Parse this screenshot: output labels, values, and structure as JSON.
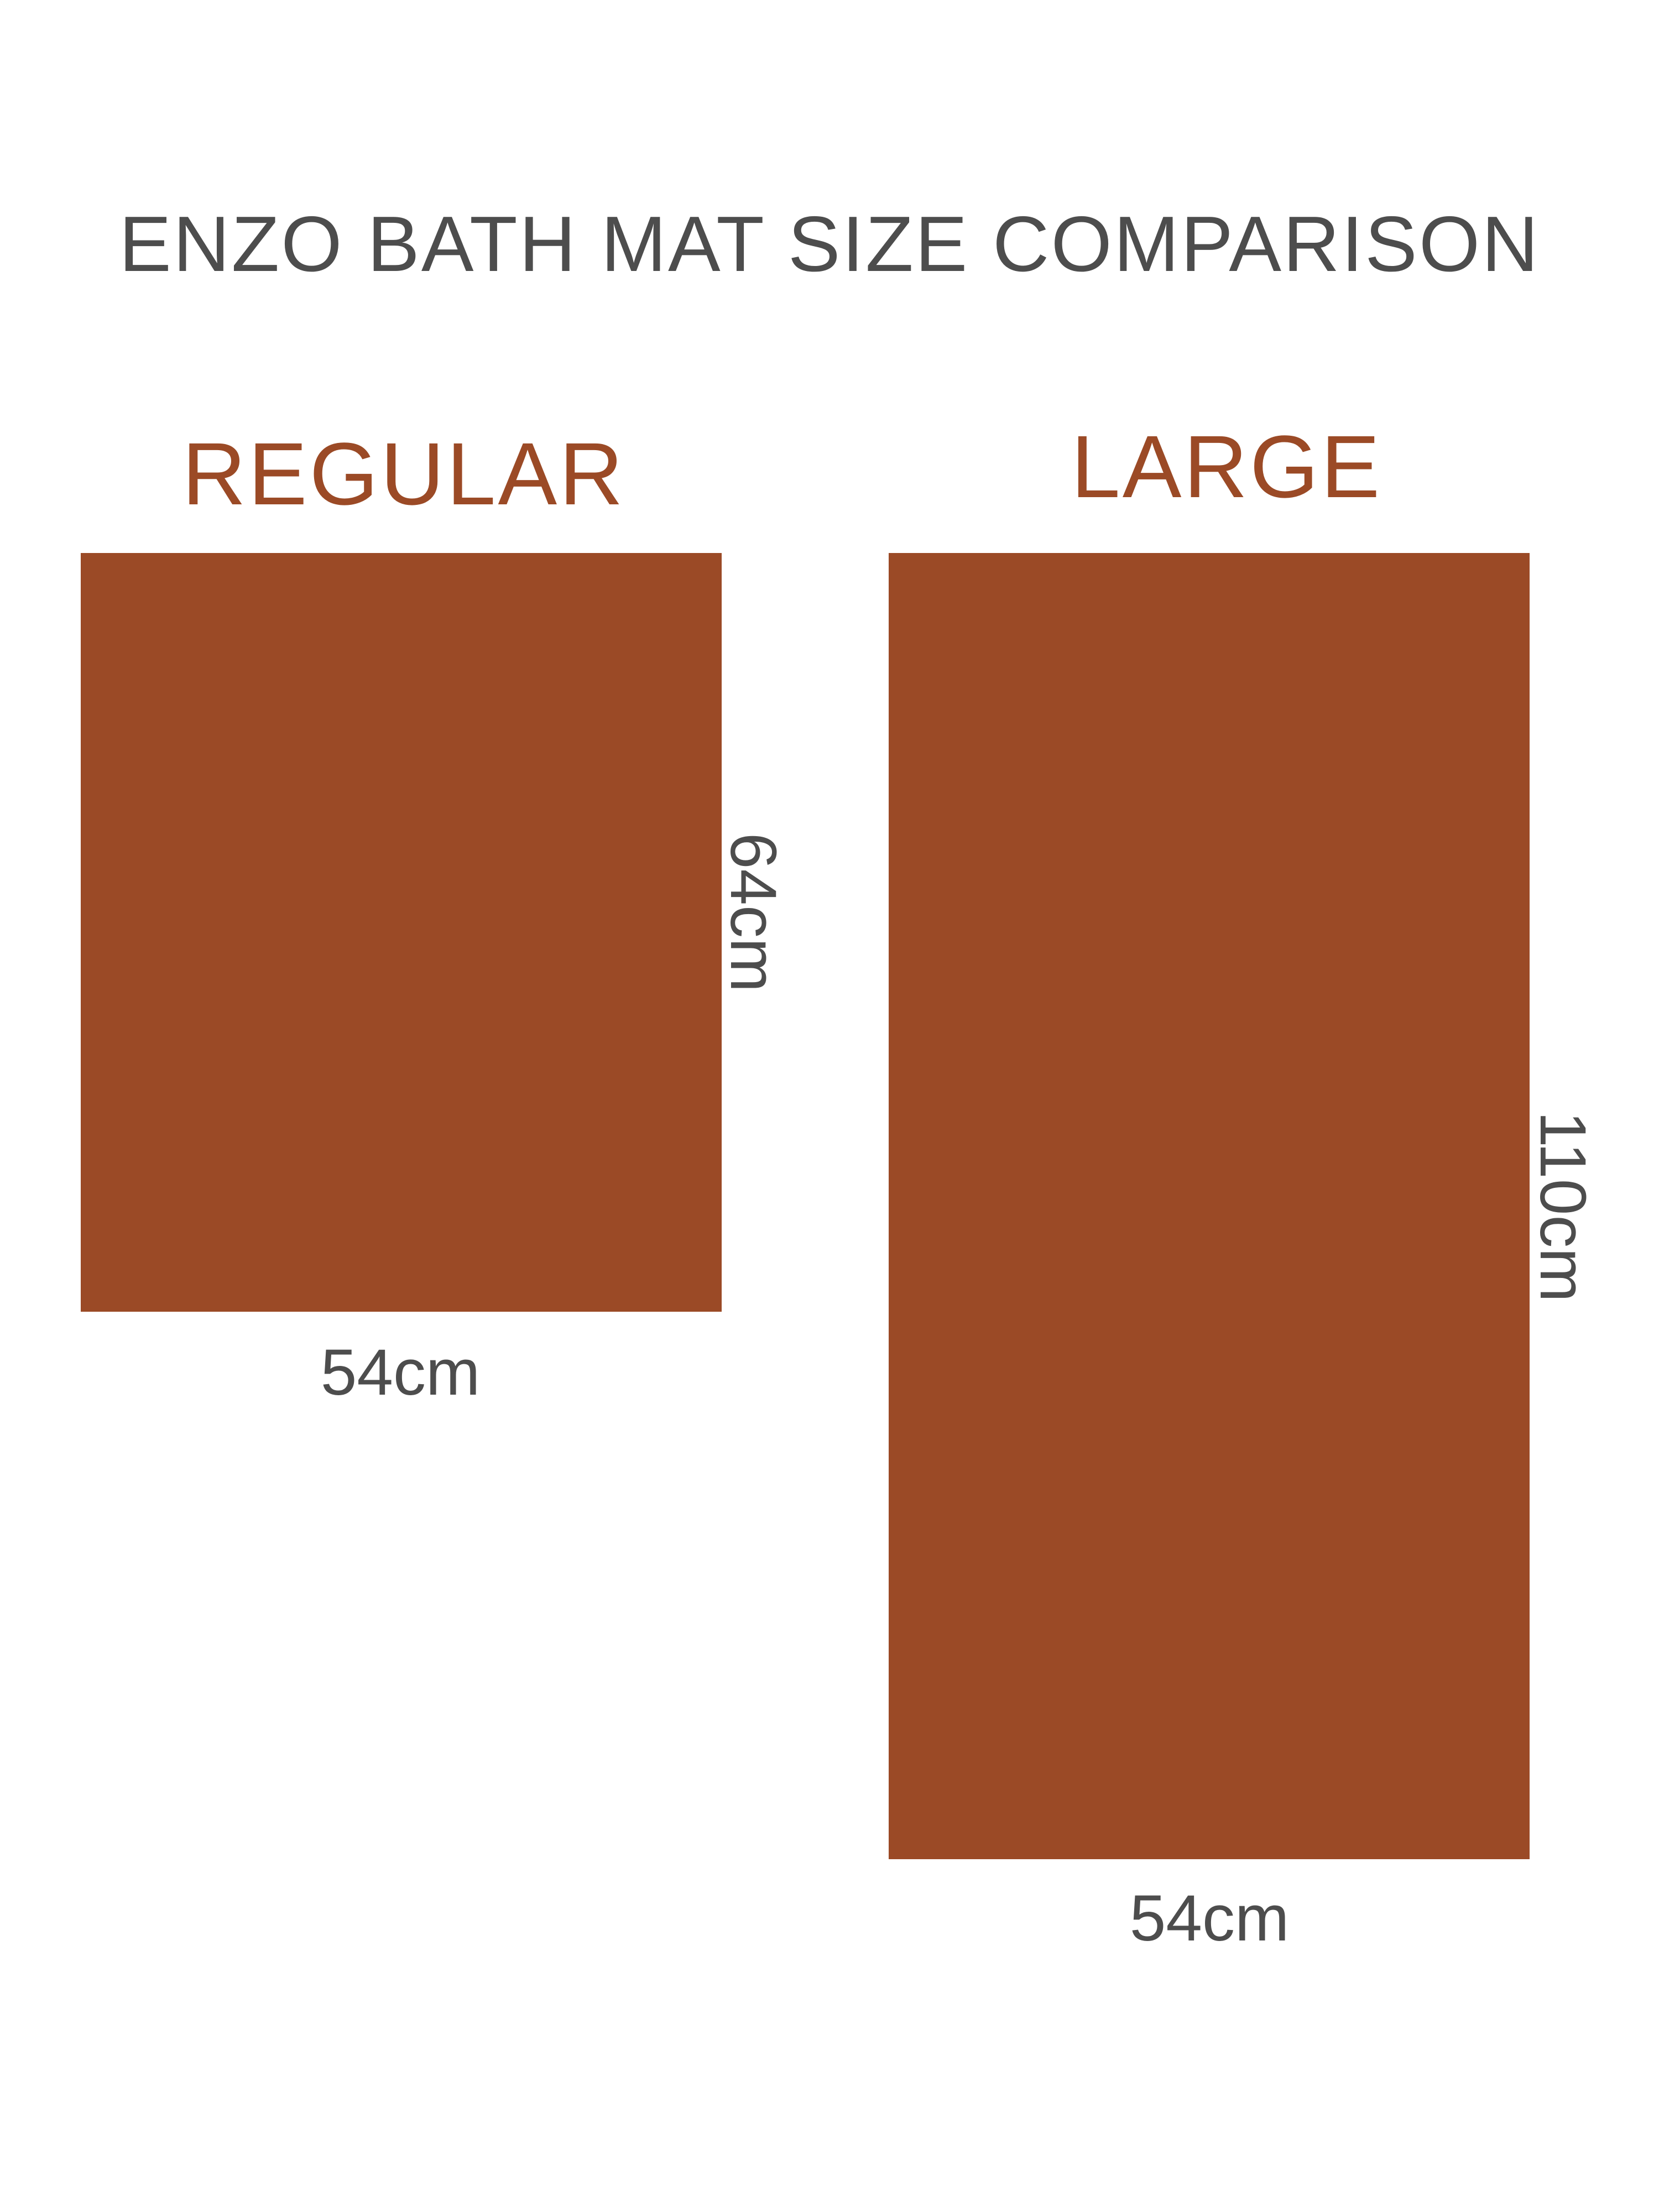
{
  "title": "ENZO BATH MAT SIZE COMPARISON",
  "colors": {
    "mat": "#9B4A26",
    "text": "#4D4D4D"
  },
  "sizes": [
    {
      "label": "REGULAR",
      "width": "54cm",
      "length": "64cm",
      "width_cm": 54,
      "length_cm": 64
    },
    {
      "label": "LARGE",
      "width": "54cm",
      "length": "110cm",
      "width_cm": 54,
      "length_cm": 110
    }
  ]
}
